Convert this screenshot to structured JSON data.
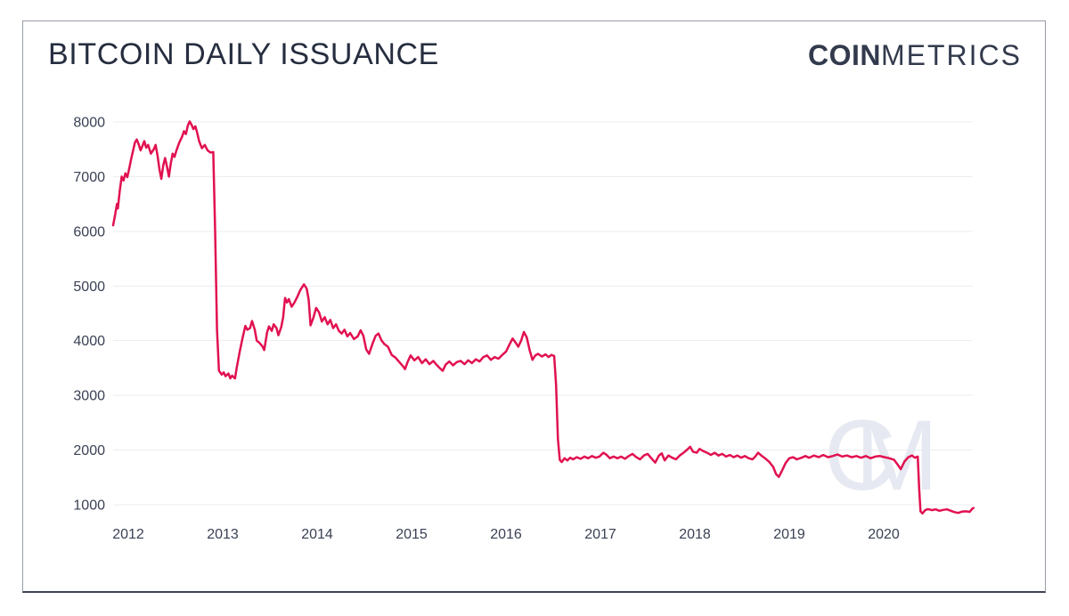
{
  "header": {
    "title": "BITCOIN DAILY ISSUANCE",
    "brand": {
      "bold": "COIN",
      "light": "METRICS"
    }
  },
  "watermark": "CM",
  "colors": {
    "line": "#e11150",
    "title_text": "#262d3f",
    "brand_text": "#333a4d",
    "axis_text": "#3a4154",
    "gridline": "#ededf0",
    "watermark": "#e6e9f1",
    "card_border": "#979ca6",
    "card_border_bottom": "#3d4254"
  },
  "chart_data": {
    "type": "line",
    "title": "BITCOIN DAILY ISSUANCE",
    "xlabel": "",
    "ylabel": "",
    "grid": "horizontal",
    "legend": "none",
    "x_ticks": [
      2012,
      2013,
      2014,
      2015,
      2016,
      2017,
      2018,
      2019,
      2020
    ],
    "y_ticks": [
      1000,
      2000,
      3000,
      4000,
      5000,
      6000,
      7000,
      8000
    ],
    "xlim": [
      2011.84,
      2020.95
    ],
    "ylim": [
      750,
      8150
    ],
    "points": [
      [
        2011.84,
        6110
      ],
      [
        2011.86,
        6300
      ],
      [
        2011.88,
        6500
      ],
      [
        2011.89,
        6420
      ],
      [
        2011.91,
        6750
      ],
      [
        2011.93,
        7000
      ],
      [
        2011.95,
        6930
      ],
      [
        2011.97,
        7060
      ],
      [
        2011.99,
        6990
      ],
      [
        2012.01,
        7150
      ],
      [
        2012.03,
        7320
      ],
      [
        2012.05,
        7470
      ],
      [
        2012.07,
        7620
      ],
      [
        2012.09,
        7680
      ],
      [
        2012.11,
        7590
      ],
      [
        2012.13,
        7480
      ],
      [
        2012.15,
        7560
      ],
      [
        2012.17,
        7650
      ],
      [
        2012.19,
        7530
      ],
      [
        2012.21,
        7580
      ],
      [
        2012.24,
        7420
      ],
      [
        2012.27,
        7500
      ],
      [
        2012.29,
        7580
      ],
      [
        2012.31,
        7380
      ],
      [
        2012.33,
        7130
      ],
      [
        2012.35,
        6960
      ],
      [
        2012.37,
        7200
      ],
      [
        2012.39,
        7340
      ],
      [
        2012.41,
        7180
      ],
      [
        2012.43,
        7000
      ],
      [
        2012.45,
        7240
      ],
      [
        2012.47,
        7420
      ],
      [
        2012.49,
        7360
      ],
      [
        2012.51,
        7480
      ],
      [
        2012.54,
        7620
      ],
      [
        2012.57,
        7730
      ],
      [
        2012.59,
        7830
      ],
      [
        2012.61,
        7780
      ],
      [
        2012.63,
        7930
      ],
      [
        2012.65,
        8010
      ],
      [
        2012.67,
        7950
      ],
      [
        2012.69,
        7870
      ],
      [
        2012.71,
        7920
      ],
      [
        2012.73,
        7800
      ],
      [
        2012.75,
        7650
      ],
      [
        2012.78,
        7520
      ],
      [
        2012.81,
        7580
      ],
      [
        2012.84,
        7480
      ],
      [
        2012.87,
        7440
      ],
      [
        2012.9,
        7450
      ],
      [
        2012.92,
        6000
      ],
      [
        2012.94,
        4200
      ],
      [
        2012.96,
        3450
      ],
      [
        2012.99,
        3380
      ],
      [
        2013.01,
        3420
      ],
      [
        2013.03,
        3350
      ],
      [
        2013.06,
        3400
      ],
      [
        2013.08,
        3310
      ],
      [
        2013.1,
        3360
      ],
      [
        2013.13,
        3310
      ],
      [
        2013.15,
        3520
      ],
      [
        2013.18,
        3800
      ],
      [
        2013.21,
        4050
      ],
      [
        2013.24,
        4270
      ],
      [
        2013.26,
        4200
      ],
      [
        2013.29,
        4230
      ],
      [
        2013.31,
        4360
      ],
      [
        2013.34,
        4200
      ],
      [
        2013.36,
        4000
      ],
      [
        2013.39,
        3960
      ],
      [
        2013.42,
        3900
      ],
      [
        2013.44,
        3830
      ],
      [
        2013.47,
        4150
      ],
      [
        2013.49,
        4260
      ],
      [
        2013.52,
        4180
      ],
      [
        2013.54,
        4300
      ],
      [
        2013.57,
        4230
      ],
      [
        2013.59,
        4100
      ],
      [
        2013.62,
        4250
      ],
      [
        2013.64,
        4420
      ],
      [
        2013.66,
        4780
      ],
      [
        2013.68,
        4700
      ],
      [
        2013.7,
        4760
      ],
      [
        2013.73,
        4620
      ],
      [
        2013.76,
        4700
      ],
      [
        2013.79,
        4800
      ],
      [
        2013.82,
        4920
      ],
      [
        2013.86,
        5030
      ],
      [
        2013.89,
        4950
      ],
      [
        2013.91,
        4750
      ],
      [
        2013.93,
        4280
      ],
      [
        2013.96,
        4420
      ],
      [
        2013.99,
        4600
      ],
      [
        2014.02,
        4520
      ],
      [
        2014.05,
        4350
      ],
      [
        2014.08,
        4430
      ],
      [
        2014.11,
        4300
      ],
      [
        2014.14,
        4380
      ],
      [
        2014.17,
        4230
      ],
      [
        2014.2,
        4300
      ],
      [
        2014.23,
        4180
      ],
      [
        2014.26,
        4130
      ],
      [
        2014.29,
        4200
      ],
      [
        2014.32,
        4080
      ],
      [
        2014.35,
        4140
      ],
      [
        2014.39,
        4030
      ],
      [
        2014.43,
        4080
      ],
      [
        2014.46,
        4190
      ],
      [
        2014.49,
        4090
      ],
      [
        2014.52,
        3840
      ],
      [
        2014.55,
        3760
      ],
      [
        2014.59,
        3960
      ],
      [
        2014.62,
        4090
      ],
      [
        2014.65,
        4130
      ],
      [
        2014.68,
        4010
      ],
      [
        2014.71,
        3940
      ],
      [
        2014.75,
        3890
      ],
      [
        2014.79,
        3740
      ],
      [
        2014.83,
        3690
      ],
      [
        2014.87,
        3610
      ],
      [
        2014.91,
        3530
      ],
      [
        2014.93,
        3480
      ],
      [
        2014.96,
        3620
      ],
      [
        2014.99,
        3730
      ],
      [
        2015.03,
        3640
      ],
      [
        2015.07,
        3700
      ],
      [
        2015.11,
        3590
      ],
      [
        2015.15,
        3660
      ],
      [
        2015.19,
        3570
      ],
      [
        2015.23,
        3630
      ],
      [
        2015.27,
        3550
      ],
      [
        2015.31,
        3480
      ],
      [
        2015.33,
        3450
      ],
      [
        2015.36,
        3560
      ],
      [
        2015.4,
        3620
      ],
      [
        2015.44,
        3550
      ],
      [
        2015.48,
        3610
      ],
      [
        2015.52,
        3630
      ],
      [
        2015.56,
        3570
      ],
      [
        2015.6,
        3640
      ],
      [
        2015.64,
        3590
      ],
      [
        2015.68,
        3660
      ],
      [
        2015.72,
        3620
      ],
      [
        2015.76,
        3700
      ],
      [
        2015.8,
        3730
      ],
      [
        2015.84,
        3650
      ],
      [
        2015.88,
        3700
      ],
      [
        2015.92,
        3670
      ],
      [
        2015.96,
        3740
      ],
      [
        2016.0,
        3800
      ],
      [
        2016.04,
        3940
      ],
      [
        2016.07,
        4040
      ],
      [
        2016.1,
        3970
      ],
      [
        2016.13,
        3890
      ],
      [
        2016.16,
        4000
      ],
      [
        2016.19,
        4160
      ],
      [
        2016.22,
        4060
      ],
      [
        2016.25,
        3830
      ],
      [
        2016.28,
        3650
      ],
      [
        2016.31,
        3730
      ],
      [
        2016.34,
        3760
      ],
      [
        2016.38,
        3710
      ],
      [
        2016.42,
        3750
      ],
      [
        2016.45,
        3700
      ],
      [
        2016.48,
        3740
      ],
      [
        2016.51,
        3720
      ],
      [
        2016.53,
        3200
      ],
      [
        2016.55,
        2200
      ],
      [
        2016.57,
        1820
      ],
      [
        2016.59,
        1780
      ],
      [
        2016.62,
        1850
      ],
      [
        2016.65,
        1810
      ],
      [
        2016.68,
        1860
      ],
      [
        2016.71,
        1830
      ],
      [
        2016.75,
        1870
      ],
      [
        2016.79,
        1840
      ],
      [
        2016.83,
        1880
      ],
      [
        2016.87,
        1850
      ],
      [
        2016.91,
        1890
      ],
      [
        2016.95,
        1860
      ],
      [
        2016.99,
        1880
      ],
      [
        2017.03,
        1950
      ],
      [
        2017.06,
        1920
      ],
      [
        2017.1,
        1850
      ],
      [
        2017.14,
        1880
      ],
      [
        2017.18,
        1850
      ],
      [
        2017.22,
        1880
      ],
      [
        2017.26,
        1840
      ],
      [
        2017.3,
        1890
      ],
      [
        2017.34,
        1930
      ],
      [
        2017.38,
        1870
      ],
      [
        2017.42,
        1830
      ],
      [
        2017.46,
        1900
      ],
      [
        2017.5,
        1930
      ],
      [
        2017.54,
        1850
      ],
      [
        2017.58,
        1770
      ],
      [
        2017.62,
        1900
      ],
      [
        2017.65,
        1940
      ],
      [
        2017.68,
        1810
      ],
      [
        2017.72,
        1900
      ],
      [
        2017.76,
        1860
      ],
      [
        2017.8,
        1830
      ],
      [
        2017.84,
        1900
      ],
      [
        2017.88,
        1950
      ],
      [
        2017.92,
        2010
      ],
      [
        2017.95,
        2060
      ],
      [
        2017.98,
        1970
      ],
      [
        2018.02,
        1950
      ],
      [
        2018.05,
        2020
      ],
      [
        2018.09,
        1980
      ],
      [
        2018.13,
        1950
      ],
      [
        2018.17,
        1910
      ],
      [
        2018.21,
        1950
      ],
      [
        2018.25,
        1900
      ],
      [
        2018.29,
        1930
      ],
      [
        2018.33,
        1880
      ],
      [
        2018.37,
        1910
      ],
      [
        2018.41,
        1870
      ],
      [
        2018.45,
        1900
      ],
      [
        2018.49,
        1860
      ],
      [
        2018.53,
        1890
      ],
      [
        2018.57,
        1850
      ],
      [
        2018.61,
        1830
      ],
      [
        2018.64,
        1880
      ],
      [
        2018.67,
        1950
      ],
      [
        2018.71,
        1890
      ],
      [
        2018.75,
        1840
      ],
      [
        2018.79,
        1780
      ],
      [
        2018.83,
        1690
      ],
      [
        2018.86,
        1560
      ],
      [
        2018.89,
        1510
      ],
      [
        2018.92,
        1610
      ],
      [
        2018.96,
        1760
      ],
      [
        2019.0,
        1850
      ],
      [
        2019.04,
        1870
      ],
      [
        2019.08,
        1830
      ],
      [
        2019.13,
        1860
      ],
      [
        2019.17,
        1890
      ],
      [
        2019.21,
        1860
      ],
      [
        2019.26,
        1900
      ],
      [
        2019.31,
        1870
      ],
      [
        2019.36,
        1910
      ],
      [
        2019.41,
        1870
      ],
      [
        2019.46,
        1890
      ],
      [
        2019.51,
        1920
      ],
      [
        2019.56,
        1880
      ],
      [
        2019.61,
        1900
      ],
      [
        2019.66,
        1870
      ],
      [
        2019.71,
        1890
      ],
      [
        2019.76,
        1860
      ],
      [
        2019.81,
        1890
      ],
      [
        2019.86,
        1850
      ],
      [
        2019.91,
        1880
      ],
      [
        2019.96,
        1890
      ],
      [
        2020.01,
        1870
      ],
      [
        2020.06,
        1850
      ],
      [
        2020.11,
        1820
      ],
      [
        2020.15,
        1730
      ],
      [
        2020.18,
        1650
      ],
      [
        2020.22,
        1790
      ],
      [
        2020.26,
        1870
      ],
      [
        2020.3,
        1900
      ],
      [
        2020.33,
        1860
      ],
      [
        2020.36,
        1880
      ],
      [
        2020.375,
        1300
      ],
      [
        2020.39,
        880
      ],
      [
        2020.41,
        840
      ],
      [
        2020.44,
        900
      ],
      [
        2020.47,
        920
      ],
      [
        2020.51,
        900
      ],
      [
        2020.55,
        915
      ],
      [
        2020.59,
        890
      ],
      [
        2020.63,
        905
      ],
      [
        2020.67,
        915
      ],
      [
        2020.71,
        890
      ],
      [
        2020.75,
        865
      ],
      [
        2020.79,
        850
      ],
      [
        2020.83,
        875
      ],
      [
        2020.87,
        880
      ],
      [
        2020.91,
        870
      ],
      [
        2020.94,
        930
      ],
      [
        2020.95,
        940
      ]
    ]
  }
}
